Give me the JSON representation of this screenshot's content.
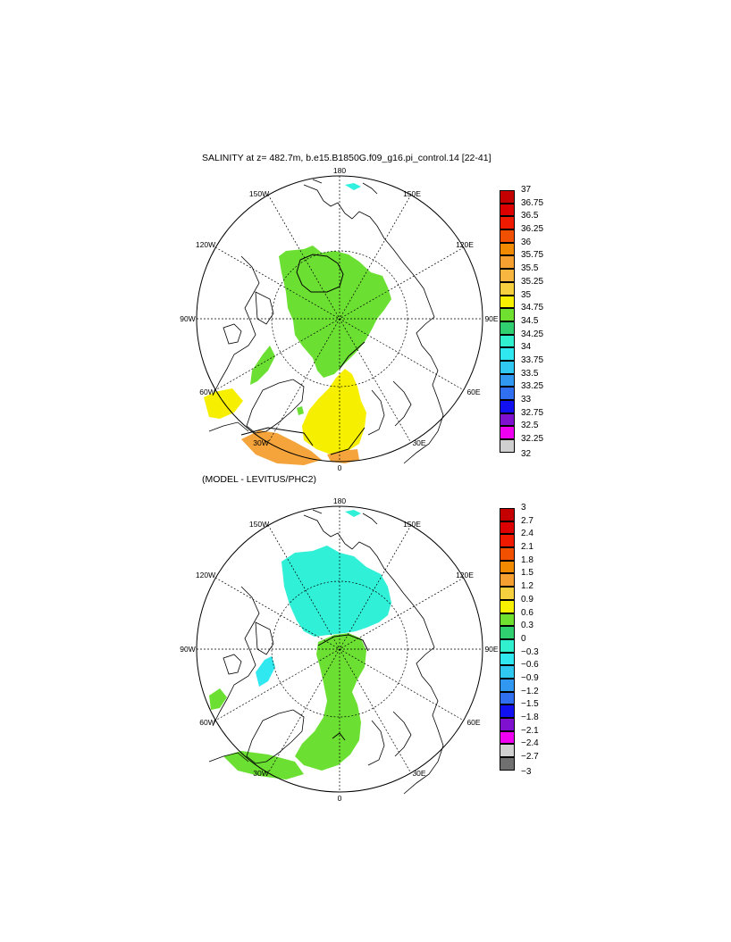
{
  "panels": [
    {
      "title": "SALINITY at z= 482.7m, b.e15.B1850G.f09_g16.pi_control.14 [22-41]",
      "lon_labels": [
        "180",
        "150E",
        "120E",
        "90E",
        "60E",
        "30E",
        "0",
        "30W",
        "60W",
        "90W",
        "120W",
        "150W"
      ],
      "colorbar": {
        "labels": [
          "37",
          "36.75",
          "36.5",
          "36.25",
          "36",
          "35.75",
          "35.5",
          "35.25",
          "35",
          "34.75",
          "34.5",
          "34.25",
          "34",
          "33.75",
          "33.5",
          "33.25",
          "33",
          "32.75",
          "32.5",
          "32.25",
          "32"
        ],
        "colors": [
          "#c40000",
          "#dc0000",
          "#f01a00",
          "#f05000",
          "#f28a00",
          "#f5a030",
          "#f7b640",
          "#f7d040",
          "#f7f000",
          "#70e030",
          "#30d070",
          "#30f0d0",
          "#30e8f0",
          "#30c8f0",
          "#3098f0",
          "#3070f0",
          "#1010f0",
          "#8010d0",
          "#f000f0",
          "#d0d0d0"
        ],
        "extra_color": "#707070"
      },
      "colors": {
        "green": "#6ce032",
        "yellow": "#f6f000",
        "orange": "#f4a43a",
        "cyan": "#30f0e0"
      }
    },
    {
      "title": "(MODEL - LEVITUS/PHC2)",
      "lon_labels": [
        "180",
        "150E",
        "120E",
        "90E",
        "60E",
        "30E",
        "0",
        "30W",
        "60W",
        "90W",
        "120W",
        "150W"
      ],
      "colorbar": {
        "labels": [
          "3",
          "2.7",
          "2.4",
          "2.1",
          "1.8",
          "1.5",
          "1.2",
          "0.9",
          "0.6",
          "0.3",
          "0",
          "−0.3",
          "−0.6",
          "−0.9",
          "−1.2",
          "−1.5",
          "−1.8",
          "−2.1",
          "−2.4",
          "−2.7",
          "−3"
        ],
        "colors": [
          "#c40000",
          "#dc0000",
          "#f01a00",
          "#f05000",
          "#f28a00",
          "#f5a030",
          "#f7d040",
          "#f7f000",
          "#70e030",
          "#30d070",
          "#30f0d0",
          "#30e8f0",
          "#30c8f0",
          "#3098f0",
          "#3070f0",
          "#1010f0",
          "#8010d0",
          "#f000f0",
          "#d0d0d0",
          "#707070"
        ],
        "extra_color": "#707070"
      },
      "colors": {
        "cyan": "#30f0d8",
        "green": "#6ce032",
        "light_cyan": "#30e8f0"
      }
    }
  ]
}
